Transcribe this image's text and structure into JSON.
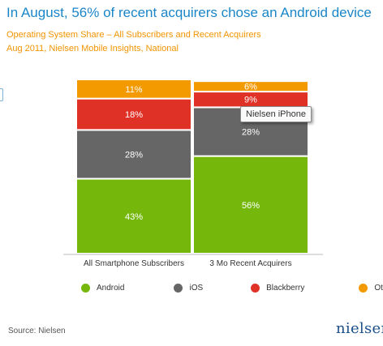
{
  "title": "In August, 56% of recent acquirers chose an Android device",
  "subtitle_line1": "Operating System Share – All Subscribers and Recent Acquirers",
  "subtitle_line2": "Aug 2011, Nielsen Mobile Insights, National",
  "tooltip": "Nielsen iPhone",
  "source": "Source: Nielsen",
  "logo": "nielsen",
  "chart_data": {
    "type": "bar",
    "stacked": true,
    "normalized_percent": true,
    "categories": [
      "All Smartphone Subscribers",
      "3 Mo Recent Acquirers"
    ],
    "series": [
      {
        "name": "Android",
        "color": "#75b80b",
        "values": [
          43,
          56
        ]
      },
      {
        "name": "iOS",
        "color": "#666666",
        "values": [
          28,
          28
        ]
      },
      {
        "name": "Blackberry",
        "color": "#e03127",
        "values": [
          18,
          9
        ]
      },
      {
        "name": "Other",
        "color": "#f39a00",
        "values": [
          11,
          6
        ]
      }
    ],
    "ylim": [
      0,
      100
    ],
    "grid": false,
    "legend_position": "bottom"
  }
}
